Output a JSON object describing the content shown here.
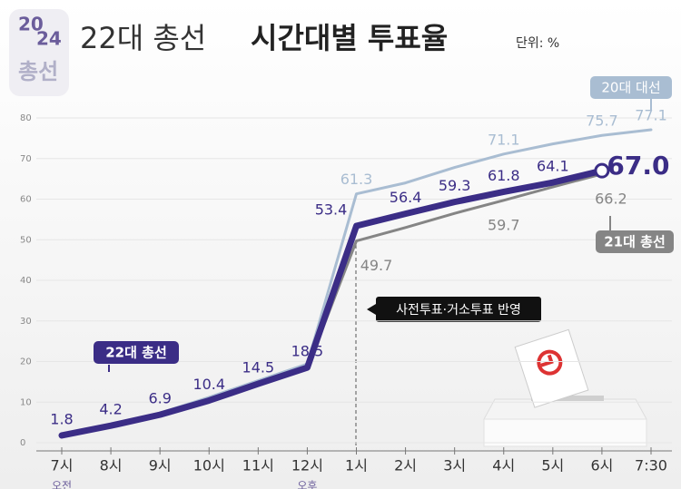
{
  "chart_data": {
    "type": "line",
    "logo_texts": [
      "20",
      "24",
      "총선"
    ],
    "title": [
      "22대 총선",
      "시간대별 투표율"
    ],
    "unit_label": "단위: %",
    "annotation": "사전투표·거소투표 반영",
    "categories": [
      "7시",
      "8시",
      "9시",
      "10시",
      "11시",
      "12시",
      "1시",
      "2시",
      "3시",
      "4시",
      "5시",
      "6시",
      "7:30"
    ],
    "x_sublabels": [
      "오전",
      null,
      null,
      null,
      null,
      "오후",
      null,
      null,
      null,
      null,
      null,
      null,
      null
    ],
    "ylim": [
      0,
      80
    ],
    "yticks": [
      0,
      10,
      20,
      30,
      40,
      50,
      60,
      70,
      80
    ],
    "grid": true,
    "series": [
      {
        "name": "20대 대선",
        "color": "#a9bdd2",
        "values": [
          1.6,
          4.5,
          7.3,
          11.2,
          15.3,
          19.4,
          61.3,
          64.0,
          67.8,
          71.1,
          73.6,
          75.7,
          77.1
        ],
        "value_labels": [
          null,
          null,
          null,
          null,
          null,
          null,
          "61.3",
          null,
          null,
          "71.1",
          null,
          "75.7",
          "77.1"
        ]
      },
      {
        "name": "21대 총선",
        "color": "#858585",
        "values": [
          1.7,
          4.3,
          7.0,
          10.5,
          14.6,
          18.3,
          49.7,
          53.0,
          56.5,
          59.7,
          63.0,
          66.2,
          null
        ],
        "value_labels": [
          null,
          null,
          null,
          null,
          null,
          null,
          "49.7",
          null,
          null,
          "59.7",
          null,
          "66.2",
          null
        ]
      },
      {
        "name": "22대 총선",
        "color": "#3b2d86",
        "values": [
          1.8,
          4.2,
          6.9,
          10.4,
          14.5,
          18.5,
          53.4,
          56.4,
          59.3,
          61.8,
          64.1,
          67.0,
          null
        ],
        "value_labels": [
          "1.8",
          "4.2",
          "6.9",
          "10.4",
          "14.5",
          "18.5",
          "53.4",
          "56.4",
          "59.3",
          "61.8",
          "64.1",
          "67.0",
          null
        ]
      }
    ]
  }
}
